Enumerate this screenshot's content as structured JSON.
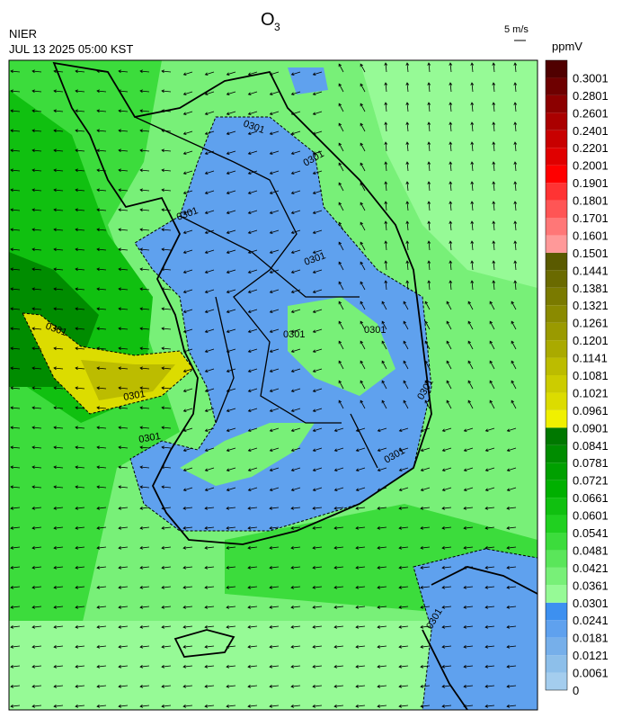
{
  "header": {
    "title": "O",
    "title_subscript": "3",
    "agency": "NIER",
    "timestamp": "JUL 13 2025 05:00 KST",
    "wind_scale": "5 m/s"
  },
  "map": {
    "contour_labels": [
      "0301",
      "0301",
      "0301",
      "0301",
      "0301",
      "0301",
      "0301",
      "0301",
      "0301",
      "0301",
      "0301",
      "0301"
    ]
  },
  "colorbar": {
    "unit": "ppmV",
    "ticks": [
      0,
      0.0061,
      0.0121,
      0.0181,
      0.0241,
      0.0301,
      0.0361,
      0.0421,
      0.0481,
      0.0541,
      0.0601,
      0.0661,
      0.0721,
      0.0781,
      0.0841,
      0.0901,
      0.0961,
      0.1021,
      0.1081,
      0.1141,
      0.1201,
      0.1261,
      0.1321,
      0.1381,
      0.1441,
      0.1501,
      0.1601,
      0.1701,
      0.1801,
      0.1901,
      0.2001,
      0.2201,
      0.2401,
      0.2601,
      0.2801,
      0.3001
    ],
    "colors": [
      "#a4cdee",
      "#8dbfea",
      "#76afea",
      "#5fa1ee",
      "#3d90f0",
      "#96fa96",
      "#78f078",
      "#5ae65a",
      "#3cdc3c",
      "#20d020",
      "#10c010",
      "#00b000",
      "#00a000",
      "#008c00",
      "#007800",
      "#f0f000",
      "#dcdc00",
      "#cccc00",
      "#bcbc00",
      "#aaaa00",
      "#9a9a00",
      "#8a8a00",
      "#7a7a00",
      "#6a6a00",
      "#5a5a00",
      "#ff9999",
      "#ff7777",
      "#ff5555",
      "#ff3333",
      "#ff0000",
      "#e00000",
      "#c80000",
      "#aa0000",
      "#8c0000",
      "#6e0000",
      "#500000"
    ]
  }
}
